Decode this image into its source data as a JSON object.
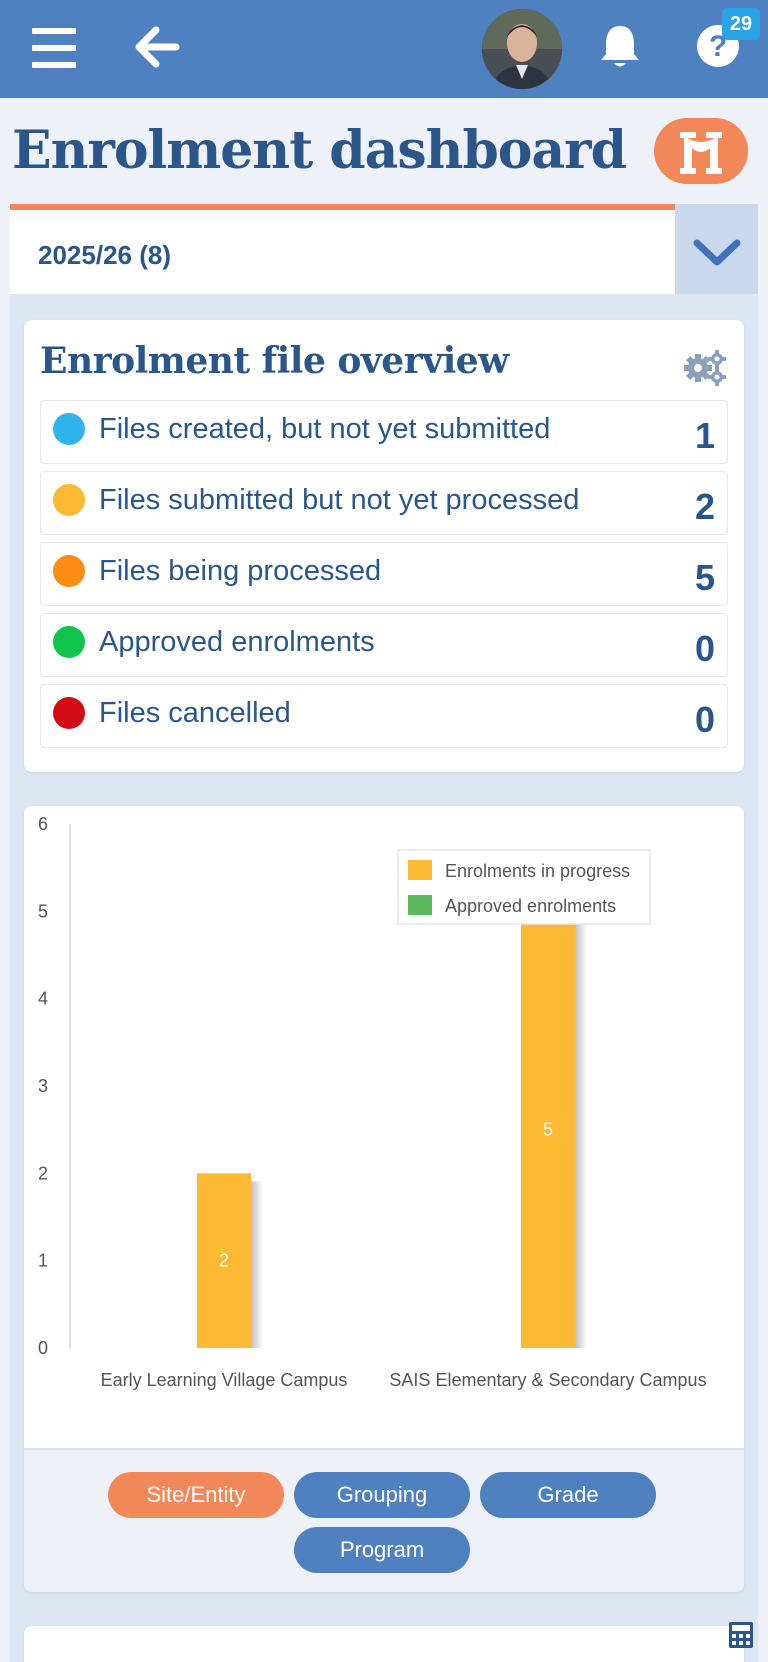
{
  "header": {
    "notification_count": "29",
    "avatar_alt": "User avatar"
  },
  "page": {
    "title": "Enrolment dashboard"
  },
  "year_selector": {
    "value": "2025/26 (8)"
  },
  "overview": {
    "title": "Enrolment file overview",
    "rows": [
      {
        "label": "Files created, but not yet submitted",
        "count": "1",
        "color": "#2fb4ec"
      },
      {
        "label": "Files submitted but not yet processed",
        "count": "2",
        "color": "#fbb934"
      },
      {
        "label": "Files being processed",
        "count": "5",
        "color": "#fb8c14"
      },
      {
        "label": "Approved enrolments",
        "count": "0",
        "color": "#10c44c"
      },
      {
        "label": "Files cancelled",
        "count": "0",
        "color": "#d10c14"
      }
    ]
  },
  "chart_data": {
    "type": "bar",
    "categories": [
      "Early Learning Village Campus",
      "SAIS Elementary & Secondary Campus"
    ],
    "series": [
      {
        "name": "Enrolments in progress",
        "values": [
          2,
          5
        ],
        "color": "#fbb934"
      },
      {
        "name": "Approved enrolments",
        "values": [
          0,
          0
        ],
        "color": "#5cb85c"
      }
    ],
    "ylim": [
      0,
      6
    ],
    "yticks": [
      0,
      1,
      2,
      3,
      4,
      5,
      6
    ],
    "legend_position": "top-right",
    "grid": false
  },
  "grouping_tabs": {
    "items": [
      {
        "label": "Site/Entity",
        "active": true
      },
      {
        "label": "Grouping",
        "active": false
      },
      {
        "label": "Grade",
        "active": false
      },
      {
        "label": "Program",
        "active": false
      }
    ]
  }
}
